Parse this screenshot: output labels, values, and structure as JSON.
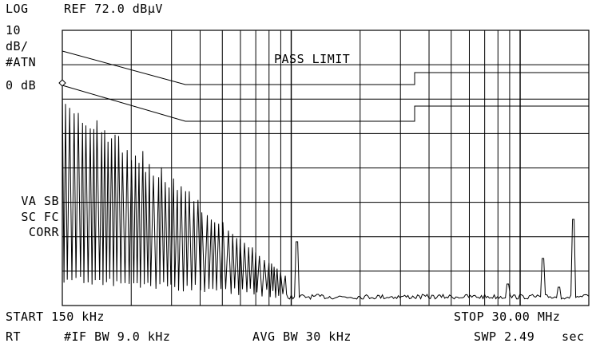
{
  "header": {
    "scale_mode": "LOG",
    "ref_level": "REF 72.0 dBµV"
  },
  "left_annotations": {
    "scale_value": "10",
    "scale_unit": "dB/",
    "attenuation_label": "#ATN",
    "attenuation_value": "0 dB",
    "va_sb": "VA SB",
    "sc_fc": "SC FC",
    "corr": "CORR"
  },
  "trace_label": "PASS LIMIT",
  "footer": {
    "start": "START 150 kHz",
    "stop": "STOP 30.00 MHz",
    "rt": "RT",
    "if_bw": "#IF BW 9.0 kHz",
    "avg_bw": "AVG BW 30 kHz",
    "swp": "SWP 2.49",
    "swp_unit": "sec"
  },
  "display": {
    "log_decades": 2.3,
    "trace_color": "#000000",
    "grid_color": "#000000",
    "background": "#ffffff"
  }
}
